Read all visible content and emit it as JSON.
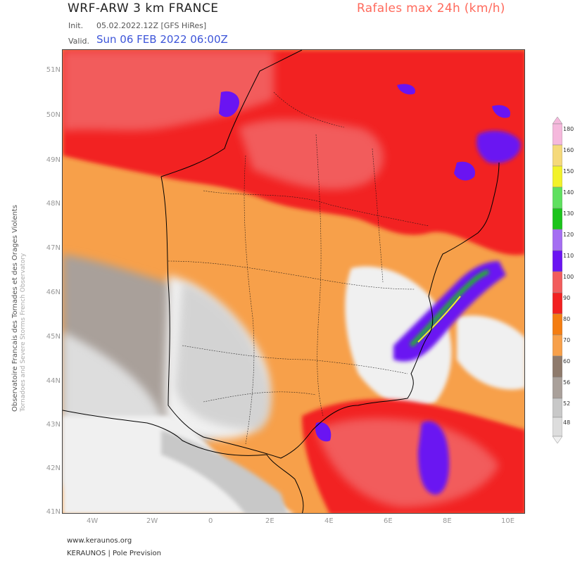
{
  "header": {
    "title": "WRF-ARW 3 km FRANCE",
    "product": "Rafales max 24h (km/h)",
    "init_label": "Init.",
    "init_value": "05.02.2022.12Z [GFS HiRes]",
    "valid_label": "Valid.",
    "valid_value": "Sun 06 FEB 2022 06:00Z"
  },
  "side": {
    "line1": "Observatoire Francais des Tornades et des Orages Violents",
    "line2": "Tornadoes and Severe Storms French Observatory"
  },
  "footer": {
    "url": "www.keraunos.org",
    "brand": "KERAUNOS | Pole Prevision"
  },
  "axes": {
    "lat": [
      "51N",
      "50N",
      "49N",
      "48N",
      "47N",
      "46N",
      "45N",
      "44N",
      "43N",
      "42N",
      "41N"
    ],
    "lon": [
      "4W",
      "2W",
      "0",
      "2E",
      "4E",
      "6E",
      "8E",
      "10E"
    ]
  },
  "legend": {
    "unit": "km/h",
    "levels": [
      "48",
      "52",
      "56",
      "60",
      "70",
      "80",
      "90",
      "100",
      "110",
      "120",
      "130",
      "140",
      "150",
      "160",
      "180"
    ],
    "colors": {
      "lt48": "#f0f0f0",
      "48": "#dddddd",
      "52": "#c8c8c8",
      "56": "#a9a09a",
      "60": "#8e7a6c",
      "70": "#f7a04a",
      "80": "#f47d12",
      "90": "#f22020",
      "100": "#f25c5c",
      "110": "#6a14f2",
      "120": "#a56ef2",
      "130": "#1bc41b",
      "140": "#5ee05e",
      "150": "#f2f22a",
      "160": "#f5d97a",
      "180": "#f5b8dc"
    }
  }
}
